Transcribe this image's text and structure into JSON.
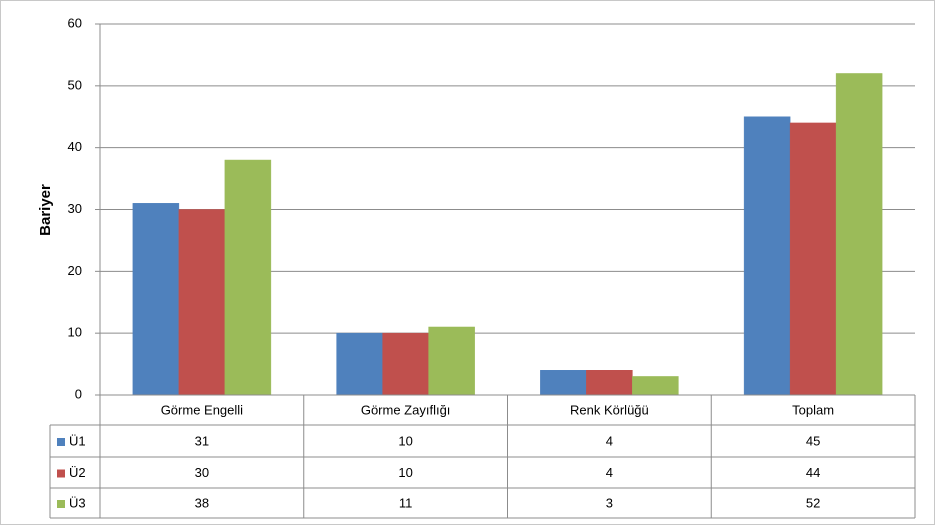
{
  "chart_data": {
    "type": "bar",
    "ylabel": "Bariyer",
    "categories": [
      "Görme Engelli",
      "Görme Zayıflığı",
      "Renk Körlüğü",
      "Toplam"
    ],
    "series": [
      {
        "name": "Ü1",
        "color": "#4f81bd",
        "values": [
          31,
          10,
          4,
          45
        ]
      },
      {
        "name": "Ü2",
        "color": "#c0504d",
        "values": [
          30,
          10,
          4,
          44
        ]
      },
      {
        "name": "Ü3",
        "color": "#9bbb59",
        "values": [
          38,
          11,
          3,
          52
        ]
      }
    ],
    "ylim": [
      0,
      60
    ],
    "yticks": [
      0,
      10,
      20,
      30,
      40,
      50,
      60
    ],
    "grid": true
  }
}
